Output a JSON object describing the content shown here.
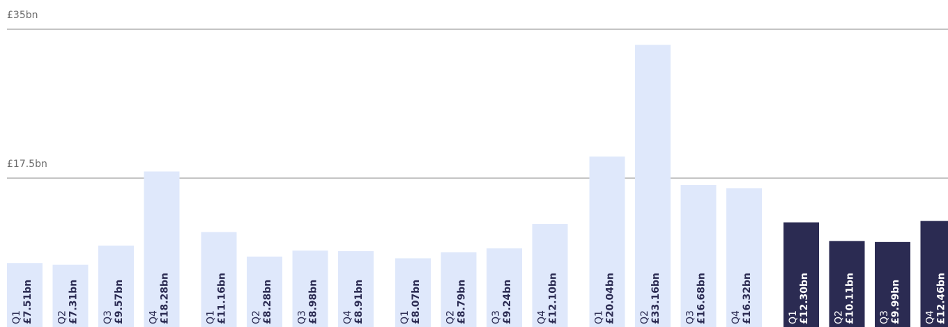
{
  "chart_data": {
    "type": "bar",
    "categories": [
      "Q1",
      "Q2",
      "Q3",
      "Q4",
      "Q1",
      "Q2",
      "Q3",
      "Q4",
      "Q1",
      "Q2",
      "Q3",
      "Q4",
      "Q1",
      "Q2",
      "Q3",
      "Q4",
      "Q1",
      "Q2",
      "Q3",
      "Q4"
    ],
    "values": [
      7.51,
      7.31,
      9.57,
      18.28,
      11.16,
      8.28,
      8.98,
      8.91,
      8.07,
      8.79,
      9.24,
      12.1,
      20.04,
      33.16,
      16.68,
      16.32,
      12.3,
      10.11,
      9.99,
      12.46
    ],
    "value_labels": [
      "£7.51bn",
      "£7.31bn",
      "£9.57bn",
      "£18.28bn",
      "£11.16bn",
      "£8.28bn",
      "£8.98bn",
      "£8.91bn",
      "£8.07bn",
      "£8.79bn",
      "£9.24bn",
      "£12.10bn",
      "£20.04bn",
      "£33.16bn",
      "£16.68bn",
      "£16.32bn",
      "£12.30bn",
      "£10.11bn",
      "£9.99bn",
      "£12.46bn"
    ],
    "colors": [
      "#dfe8fb",
      "#dfe8fb",
      "#dfe8fb",
      "#dfe8fb",
      "#dfe8fb",
      "#dfe8fb",
      "#dfe8fb",
      "#dfe8fb",
      "#dfe8fb",
      "#dfe8fb",
      "#dfe8fb",
      "#dfe8fb",
      "#dfe8fb",
      "#dfe8fb",
      "#dfe8fb",
      "#dfe8fb",
      "#2b2b52",
      "#2b2b52",
      "#2b2b52",
      "#2b2b52"
    ],
    "ylim": [
      0,
      35
    ],
    "yticks": [
      {
        "value": 17.5,
        "label": "£17.5bn"
      },
      {
        "value": 35,
        "label": "£35bn"
      }
    ],
    "grid": true
  }
}
